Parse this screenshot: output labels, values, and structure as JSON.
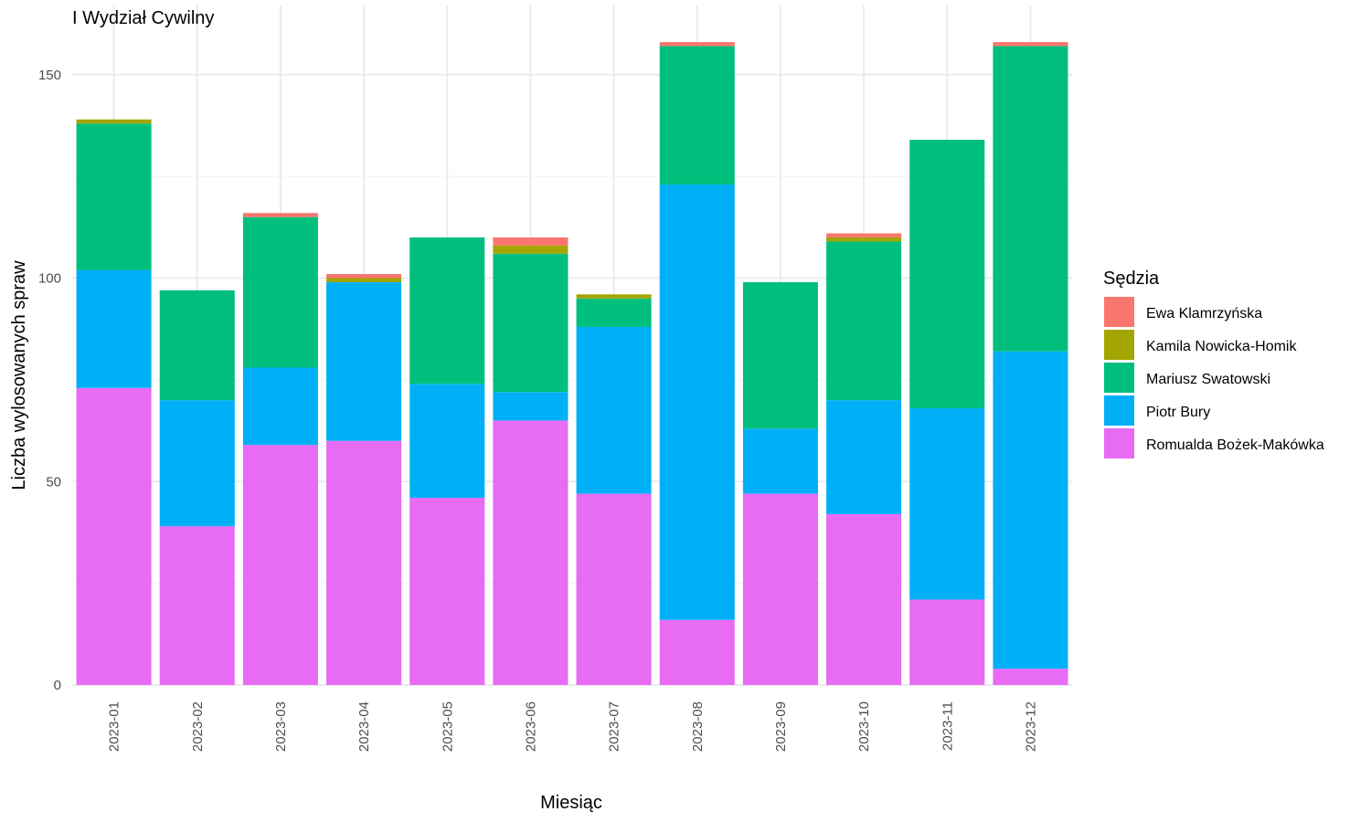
{
  "chart_data": {
    "type": "bar",
    "stacked": true,
    "title": "I Wydział Cywilny",
    "xlabel": "Miesiąc",
    "ylabel": "Liczba wylosowanych spraw",
    "ylim": [
      0,
      160
    ],
    "yticks": [
      0,
      50,
      100,
      150
    ],
    "grid": true,
    "legend_title": "Sędzia",
    "legend_position": "right",
    "categories": [
      "2023-01",
      "2023-02",
      "2023-03",
      "2023-04",
      "2023-05",
      "2023-06",
      "2023-07",
      "2023-08",
      "2023-09",
      "2023-10",
      "2023-11",
      "2023-12"
    ],
    "series": [
      {
        "name": "Romualda Bożek-Makówka",
        "color": "#E76BF3",
        "values": [
          73,
          39,
          59,
          60,
          46,
          65,
          47,
          16,
          47,
          42,
          21,
          4
        ]
      },
      {
        "name": "Piotr Bury",
        "color": "#00B0F6",
        "values": [
          29,
          31,
          19,
          39,
          28,
          7,
          41,
          107,
          16,
          28,
          47,
          78
        ]
      },
      {
        "name": "Mariusz Swatowski",
        "color": "#00BF7D",
        "values": [
          36,
          27,
          37,
          0,
          36,
          34,
          7,
          34,
          36,
          39,
          66,
          75
        ]
      },
      {
        "name": "Kamila Nowicka-Homik",
        "color": "#A3A500",
        "values": [
          1,
          0,
          0,
          1,
          0,
          2,
          1,
          0,
          0,
          1,
          0,
          0
        ]
      },
      {
        "name": "Ewa Klamrzyńska",
        "color": "#F8766D",
        "values": [
          0,
          0,
          1,
          1,
          0,
          2,
          0,
          1,
          0,
          1,
          0,
          1
        ]
      }
    ],
    "legend_order": [
      "Ewa Klamrzyńska",
      "Kamila Nowicka-Homik",
      "Mariusz Swatowski",
      "Piotr Bury",
      "Romualda Bożek-Makówka"
    ]
  }
}
